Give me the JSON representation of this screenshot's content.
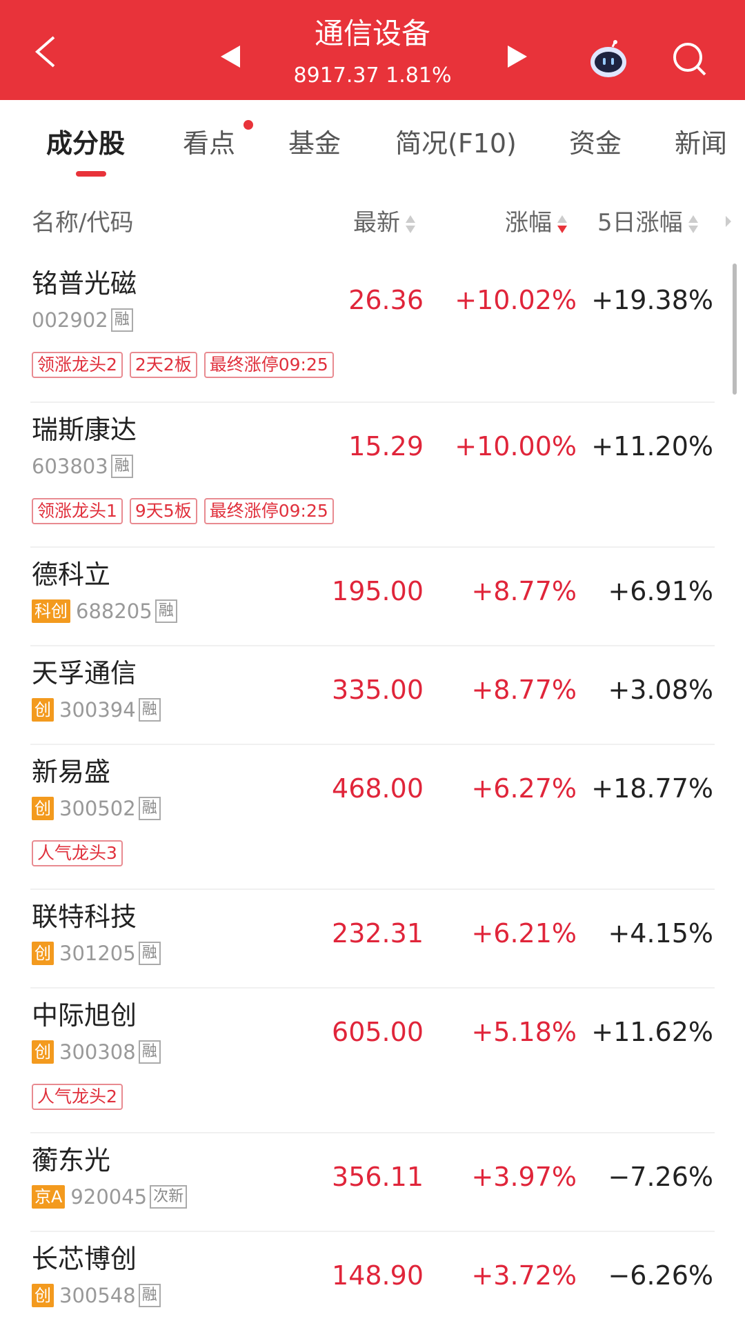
{
  "header": {
    "title": "通信设备",
    "index_value": "8917.37",
    "index_change": "1.81%",
    "bg_color": "#e8333a"
  },
  "tabs": [
    {
      "label": "成分股",
      "active": true
    },
    {
      "label": "看点",
      "badge_dot": true
    },
    {
      "label": "基金"
    },
    {
      "label": "简况(F10)"
    },
    {
      "label": "资金"
    },
    {
      "label": "新闻"
    }
  ],
  "columns": {
    "name": "名称/代码",
    "price": "最新",
    "change": "涨幅",
    "change5d": "5日涨幅",
    "sorted_by": "涨幅",
    "sort_order": "desc"
  },
  "stocks": [
    {
      "name": "铭普光磁",
      "market": "",
      "code": "002902",
      "flag": "融",
      "price": "26.36",
      "change": "+10.02%",
      "change5d": "+19.38%",
      "tags": [
        "领涨龙头2",
        "2天2板",
        "最终涨停09:25"
      ]
    },
    {
      "name": "瑞斯康达",
      "market": "",
      "code": "603803",
      "flag": "融",
      "price": "15.29",
      "change": "+10.00%",
      "change5d": "+11.20%",
      "tags": [
        "领涨龙头1",
        "9天5板",
        "最终涨停09:25"
      ]
    },
    {
      "name": "德科立",
      "market": "科创",
      "code": "688205",
      "flag": "融",
      "price": "195.00",
      "change": "+8.77%",
      "change5d": "+6.91%",
      "tags": []
    },
    {
      "name": "天孚通信",
      "market": "创",
      "code": "300394",
      "flag": "融",
      "price": "335.00",
      "change": "+8.77%",
      "change5d": "+3.08%",
      "tags": []
    },
    {
      "name": "新易盛",
      "market": "创",
      "code": "300502",
      "flag": "融",
      "price": "468.00",
      "change": "+6.27%",
      "change5d": "+18.77%",
      "tags": [
        "人气龙头3"
      ]
    },
    {
      "name": "联特科技",
      "market": "创",
      "code": "301205",
      "flag": "融",
      "price": "232.31",
      "change": "+6.21%",
      "change5d": "+4.15%",
      "tags": []
    },
    {
      "name": "中际旭创",
      "market": "创",
      "code": "300308",
      "flag": "融",
      "price": "605.00",
      "change": "+5.18%",
      "change5d": "+11.62%",
      "tags": [
        "人气龙头2"
      ]
    },
    {
      "name": "蘅东光",
      "market": "京A",
      "code": "920045",
      "flag": "次新",
      "price": "356.11",
      "change": "+3.97%",
      "change5d": "−7.26%",
      "tags": []
    },
    {
      "name": "长芯博创",
      "market": "创",
      "code": "300548",
      "flag": "融",
      "price": "148.90",
      "change": "+3.72%",
      "change5d": "−6.26%",
      "tags": []
    }
  ]
}
